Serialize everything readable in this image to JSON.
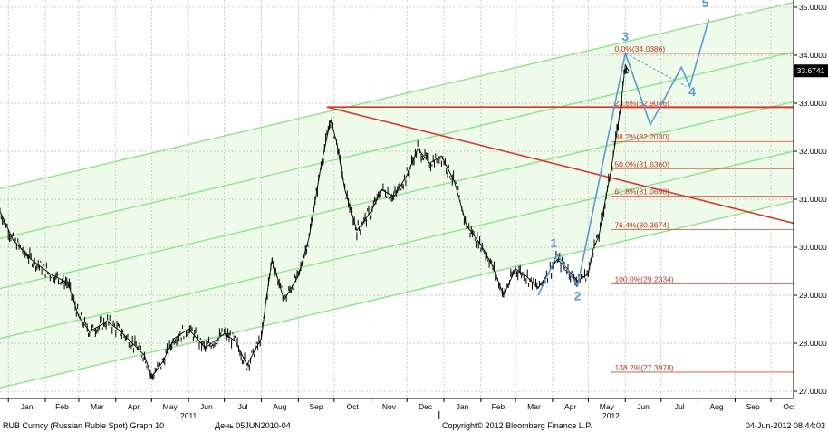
{
  "footer": {
    "left": "RUB Curncy (Russian Ruble Spot) Graph 10",
    "period": "День 05JUN2010-04",
    "copyright": "Copyright© 2012 Bloomberg Finance L.P.",
    "timestamp": "04-Jun-2012 08:44:03"
  },
  "chart_data": {
    "type": "candlestick-line",
    "title": "",
    "xlabel": "",
    "ylabel": "",
    "ylim": [
      26.85,
      35.15
    ],
    "x_range": [
      "2010-12-25",
      "2012-10-20"
    ],
    "grid": true,
    "y_ticks": [
      "27.0000",
      "28.0000",
      "29.0000",
      "30.0000",
      "31.0000",
      "32.0000",
      "33.0000",
      "34.0000",
      "35.0000"
    ],
    "x_ticks": [
      {
        "label": "Jan",
        "date": "2011-01-01"
      },
      {
        "label": "Feb",
        "date": "2011-02-01"
      },
      {
        "label": "Mar",
        "date": "2011-03-01"
      },
      {
        "label": "Apr",
        "date": "2011-04-01"
      },
      {
        "label": "May",
        "date": "2011-05-01"
      },
      {
        "label": "Jun",
        "date": "2011-06-01"
      },
      {
        "label": "Jul",
        "date": "2011-07-01"
      },
      {
        "label": "Aug",
        "date": "2011-08-01"
      },
      {
        "label": "Sep",
        "date": "2011-09-01"
      },
      {
        "label": "Oct",
        "date": "2011-10-01"
      },
      {
        "label": "Nov",
        "date": "2011-11-01"
      },
      {
        "label": "Dec",
        "date": "2011-12-01"
      },
      {
        "label": "Jan",
        "date": "2012-01-01"
      },
      {
        "label": "Feb",
        "date": "2012-02-01"
      },
      {
        "label": "Mar",
        "date": "2012-03-01"
      },
      {
        "label": "Apr",
        "date": "2012-04-01"
      },
      {
        "label": "May",
        "date": "2012-05-01"
      },
      {
        "label": "Jun",
        "date": "2012-06-01"
      },
      {
        "label": "Jul",
        "date": "2012-07-01"
      },
      {
        "label": "Aug",
        "date": "2012-08-01"
      },
      {
        "label": "Sep",
        "date": "2012-09-01"
      },
      {
        "label": "Oct",
        "date": "2012-10-01"
      }
    ],
    "year_labels": [
      {
        "label": "2011",
        "date": "2011-06-01"
      },
      {
        "label": "2012",
        "date": "2012-05-20"
      }
    ],
    "year_separators": [
      "2011-12-28"
    ],
    "last_price": {
      "label": "33.6741",
      "value": 33.6741
    },
    "price_series": {
      "name": "",
      "points": [
        [
          "2010-12-25",
          30.75
        ],
        [
          "2011-01-05",
          30.15
        ],
        [
          "2011-01-20",
          29.75
        ],
        [
          "2011-02-05",
          29.45
        ],
        [
          "2011-02-20",
          29.25
        ],
        [
          "2011-03-01",
          28.55
        ],
        [
          "2011-03-10",
          28.25
        ],
        [
          "2011-03-25",
          28.45
        ],
        [
          "2011-04-05",
          28.25
        ],
        [
          "2011-04-15",
          28.0
        ],
        [
          "2011-04-25",
          27.75
        ],
        [
          "2011-05-01",
          27.3
        ],
        [
          "2011-05-10",
          27.6
        ],
        [
          "2011-05-20",
          28.1
        ],
        [
          "2011-06-01",
          28.3
        ],
        [
          "2011-06-15",
          27.9
        ],
        [
          "2011-07-01",
          28.2
        ],
        [
          "2011-07-10",
          28.05
        ],
        [
          "2011-07-20",
          27.55
        ],
        [
          "2011-08-01",
          28.1
        ],
        [
          "2011-08-05",
          28.9
        ],
        [
          "2011-08-10",
          29.75
        ],
        [
          "2011-08-20",
          28.9
        ],
        [
          "2011-09-01",
          29.4
        ],
        [
          "2011-09-10",
          30.2
        ],
        [
          "2011-09-20",
          31.7
        ],
        [
          "2011-09-28",
          32.65
        ],
        [
          "2011-10-03",
          32.2
        ],
        [
          "2011-10-10",
          31.2
        ],
        [
          "2011-10-20",
          30.35
        ],
        [
          "2011-11-01",
          30.75
        ],
        [
          "2011-11-10",
          31.2
        ],
        [
          "2011-11-20",
          31.05
        ],
        [
          "2011-12-01",
          31.5
        ],
        [
          "2011-12-10",
          32.05
        ],
        [
          "2011-12-20",
          31.75
        ],
        [
          "2011-12-30",
          31.9
        ],
        [
          "2012-01-10",
          31.35
        ],
        [
          "2012-01-20",
          30.45
        ],
        [
          "2012-02-01",
          30.05
        ],
        [
          "2012-02-10",
          29.65
        ],
        [
          "2012-02-20",
          29.0
        ],
        [
          "2012-03-01",
          29.55
        ],
        [
          "2012-03-10",
          29.4
        ],
        [
          "2012-03-20",
          29.15
        ],
        [
          "2012-03-28",
          29.45
        ],
        [
          "2012-04-05",
          29.75
        ],
        [
          "2012-04-15",
          29.5
        ],
        [
          "2012-04-22",
          29.3
        ],
        [
          "2012-05-01",
          29.45
        ],
        [
          "2012-05-05",
          29.95
        ],
        [
          "2012-05-10",
          30.25
        ],
        [
          "2012-05-15",
          30.95
        ],
        [
          "2012-05-20",
          31.6
        ],
        [
          "2012-05-25",
          32.4
        ],
        [
          "2012-05-28",
          32.9
        ],
        [
          "2012-06-01",
          33.8
        ],
        [
          "2012-06-04",
          33.67
        ]
      ]
    },
    "channel_lines": [
      {
        "name": "",
        "from": [
          "2010-12-25",
          31.22
        ],
        "to": [
          "2012-10-20",
          35.1
        ]
      },
      {
        "name": "",
        "from": [
          "2010-12-25",
          30.18
        ],
        "to": [
          "2012-10-20",
          34.07
        ]
      },
      {
        "name": "",
        "from": [
          "2010-12-25",
          29.14
        ],
        "to": [
          "2012-10-20",
          33.03
        ]
      },
      {
        "name": "",
        "from": [
          "2010-12-25",
          28.1
        ],
        "to": [
          "2012-10-20",
          32.0
        ]
      },
      {
        "name": "",
        "from": [
          "2010-12-25",
          27.07
        ],
        "to": [
          "2012-10-20",
          30.96
        ]
      }
    ],
    "trend_lines": [
      {
        "from": [
          "2011-09-25",
          32.92
        ],
        "to": [
          "2012-10-20",
          30.5
        ]
      },
      {
        "from": [
          "2011-09-25",
          32.92
        ],
        "to": [
          "2012-10-20",
          32.92
        ]
      }
    ],
    "fibonacci": [
      {
        "label": "0.0%(34.0386)",
        "value": 34.0386
      },
      {
        "label": "23.6%(32.9046)",
        "value": 32.9046
      },
      {
        "label": "38.2%(32.2030)",
        "value": 32.203
      },
      {
        "label": "50.0%(31.6360)",
        "value": 31.636
      },
      {
        "label": "61.8%(31.0690)",
        "value": 31.069
      },
      {
        "label": "76.4%(30.3674)",
        "value": 30.3674
      },
      {
        "label": "100.0%(29.2334)",
        "value": 29.2334
      },
      {
        "label": "138.2%(27.3978)",
        "value": 27.3978
      }
    ],
    "fib_start": "2012-05-20",
    "wave_path": [
      [
        "2012-03-20",
        29.0
      ],
      [
        "2012-04-05",
        29.85
      ],
      [
        "2012-04-22",
        29.2
      ],
      [
        "2012-06-01",
        34.04
      ],
      [
        "2012-06-22",
        32.55
      ],
      [
        "2012-07-18",
        33.75
      ],
      [
        "2012-07-25",
        33.35
      ],
      [
        "2012-08-10",
        34.75
      ]
    ],
    "wave_projection": [
      [
        "2012-06-01",
        34.04
      ],
      [
        "2012-07-22",
        33.35
      ]
    ],
    "wave_labels": [
      {
        "label": "1",
        "date": "2012-04-02",
        "value": 30.0
      },
      {
        "label": "2",
        "date": "2012-04-22",
        "value": 28.9
      },
      {
        "label": "3",
        "date": "2012-06-01",
        "value": 34.3
      },
      {
        "label": "4",
        "date": "2012-07-27",
        "value": 33.15
      },
      {
        "label": "5",
        "date": "2012-08-07",
        "value": 35.0
      }
    ]
  }
}
